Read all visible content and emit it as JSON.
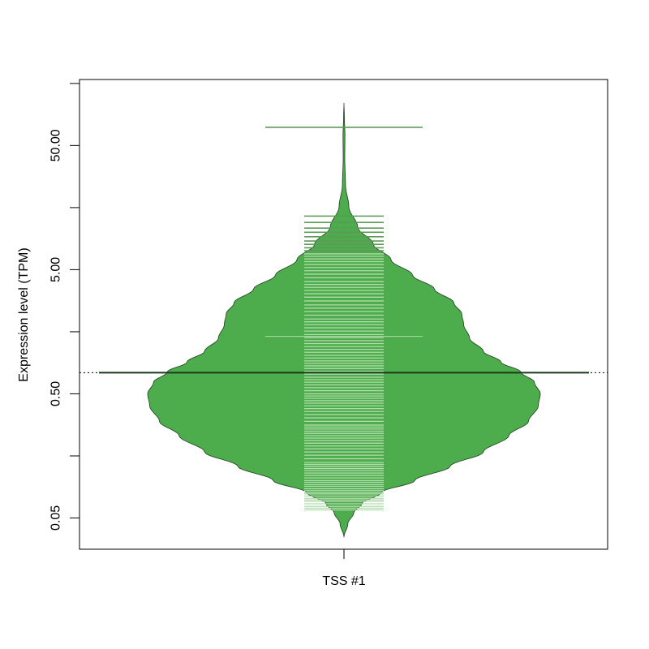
{
  "chart_data": {
    "type": "beanplot",
    "title": "",
    "ylabel": "Expression level (TPM)",
    "xlabel": "",
    "y_scale": "log10",
    "ylim": [
      0.028,
      170
    ],
    "categories": [
      "TSS #1"
    ],
    "y_ticks": [
      0.05,
      0.5,
      5.0,
      50.0
    ],
    "y_tick_labels": [
      "0.05",
      "0.50",
      "5.00",
      "50.00"
    ],
    "y_minor_ticks": [
      0.158,
      1.58,
      15.8,
      158
    ],
    "overall_mean_line": 0.74,
    "colors": {
      "bean_fill": "#4dac4b",
      "bean_stroke": "#1f3d1f",
      "beanline": "#1b3a1b",
      "strip": "#b2dcad",
      "strip_outlier": "#5d9a58"
    },
    "series": [
      {
        "group_mean": 1.45,
        "density": [
          [
            0.035,
            0.0
          ],
          [
            0.045,
            0.02
          ],
          [
            0.055,
            0.05
          ],
          [
            0.065,
            0.09
          ],
          [
            0.08,
            0.19
          ],
          [
            0.1,
            0.36
          ],
          [
            0.13,
            0.54
          ],
          [
            0.17,
            0.71
          ],
          [
            0.23,
            0.84
          ],
          [
            0.3,
            0.94
          ],
          [
            0.4,
            0.99
          ],
          [
            0.5,
            1.0
          ],
          [
            0.62,
            0.97
          ],
          [
            0.75,
            0.9
          ],
          [
            0.9,
            0.8
          ],
          [
            1.1,
            0.71
          ],
          [
            1.4,
            0.64
          ],
          [
            1.8,
            0.61
          ],
          [
            2.2,
            0.6
          ],
          [
            2.7,
            0.56
          ],
          [
            3.5,
            0.46
          ],
          [
            4.5,
            0.35
          ],
          [
            6.0,
            0.24
          ],
          [
            8.0,
            0.15
          ],
          [
            11.0,
            0.07
          ],
          [
            16.0,
            0.025
          ],
          [
            24.0,
            0.008
          ],
          [
            40.0,
            0.004
          ],
          [
            60.0,
            0.005
          ],
          [
            85.0,
            0.002
          ],
          [
            110.0,
            0.0
          ]
        ],
        "points": [
          0.058,
          0.06,
          0.062,
          0.065,
          0.068,
          0.07,
          0.072,
          0.075,
          0.078,
          0.08,
          0.083,
          0.086,
          0.09,
          0.093,
          0.097,
          0.1,
          0.105,
          0.11,
          0.115,
          0.12,
          0.125,
          0.13,
          0.135,
          0.14,
          0.15,
          0.16,
          0.17,
          0.18,
          0.19,
          0.2,
          0.21,
          0.22,
          0.23,
          0.24,
          0.25,
          0.26,
          0.27,
          0.28,
          0.3,
          0.32,
          0.34,
          0.36,
          0.38,
          0.4,
          0.42,
          0.44,
          0.46,
          0.48,
          0.5,
          0.53,
          0.56,
          0.59,
          0.62,
          0.65,
          0.68,
          0.72,
          0.76,
          0.8,
          0.84,
          0.88,
          0.92,
          0.97,
          1.02,
          1.08,
          1.14,
          1.2,
          1.27,
          1.34,
          1.42,
          1.5,
          1.6,
          1.7,
          1.8,
          1.9,
          2.0,
          2.15,
          2.3,
          2.45,
          2.6,
          2.8,
          3.0,
          3.2,
          3.4,
          3.6,
          3.8,
          4.0,
          4.3,
          4.6,
          4.9,
          5.2,
          5.5,
          5.8,
          6.1,
          6.4,
          6.7,
          7.1,
          7.5,
          8.0,
          8.5,
          9.2,
          10.0,
          10.8,
          12.0,
          13.5,
          70.0
        ],
        "outlier_threshold": 7.0
      }
    ]
  }
}
